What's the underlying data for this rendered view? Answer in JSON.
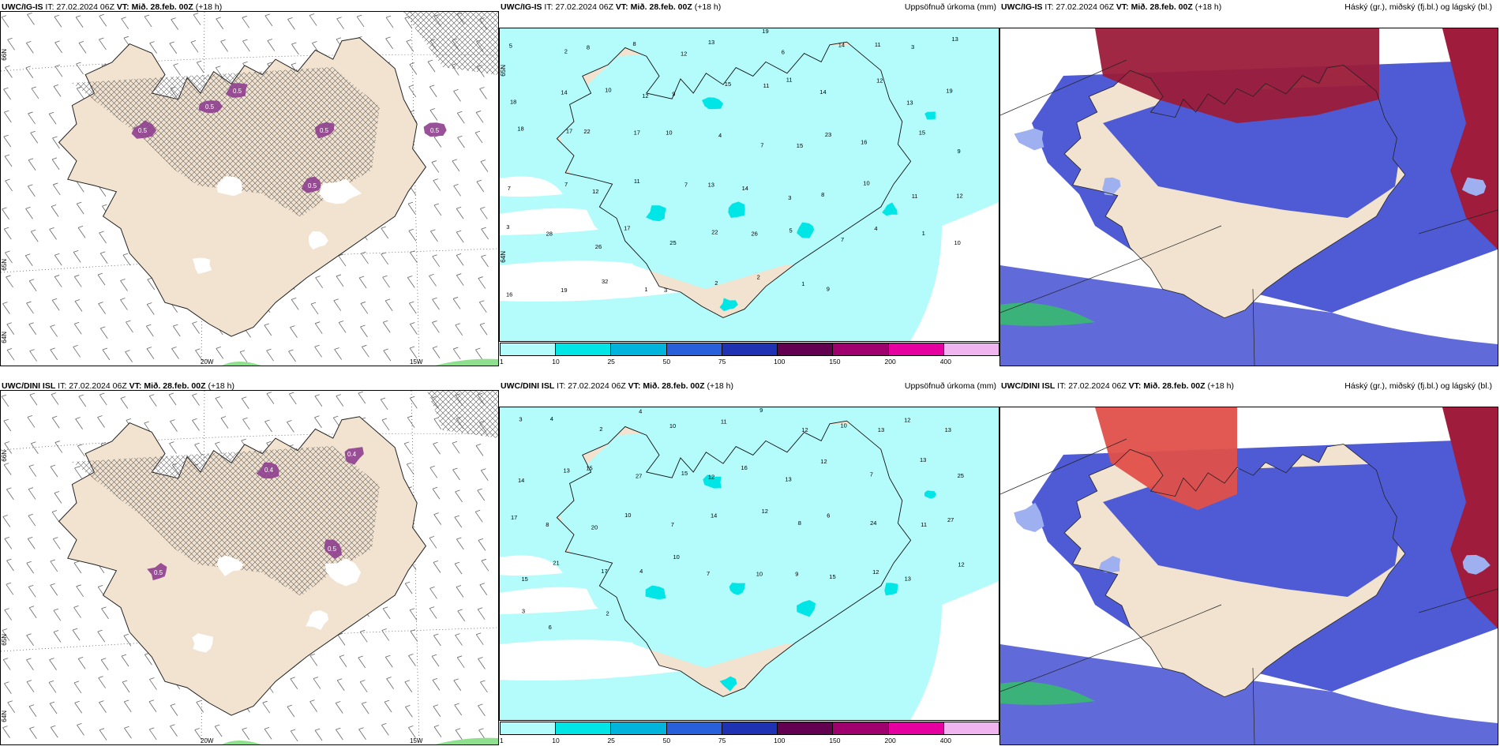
{
  "run": {
    "init_label": "IT:",
    "init_time": "27.02.2024 06Z",
    "valid_label": "VT:",
    "valid_time": "Mið. 28.feb. 00Z",
    "lead": "(+18 h)"
  },
  "rows": [
    {
      "model": "UWC/IG-IS"
    },
    {
      "model": "UWC/DINI ISL"
    }
  ],
  "panel_titles": {
    "accum": "Uppsöfnuð úrkoma (mm)",
    "cloud": "Háský (gr.), miðský (fj.bl.) og lágský (bl.)"
  },
  "axis_labels": {
    "lat66": "66N",
    "lat65": "65N",
    "lat64": "64N",
    "lon20": "20W",
    "lon15": "15W"
  },
  "colorbar": {
    "ticks": [
      "1",
      "10",
      "25",
      "50",
      "75",
      "100",
      "150",
      "200",
      "400"
    ],
    "colors": [
      "#b4fbfb",
      "#00e6e6",
      "#00b4dc",
      "#2860dc",
      "#2032b4",
      "#640050",
      "#a0006e",
      "#e600a0",
      "#f0b4f0"
    ]
  },
  "land_color": "#f2e2d0",
  "sea_precip_color": "#b4fbfb",
  "precip_values_top": [
    "5",
    "2",
    "8",
    "8",
    "12",
    "13",
    "19",
    "6",
    "14",
    "11",
    "3",
    "13",
    "18",
    "14",
    "10",
    "12",
    "9",
    "15",
    "11",
    "11",
    "14",
    "12",
    "13",
    "19",
    "18",
    "17",
    "22",
    "17",
    "10",
    "4",
    "7",
    "15",
    "23",
    "16",
    "15",
    "9",
    "7",
    "7",
    "12",
    "11",
    "7",
    "13",
    "14",
    "3",
    "8",
    "10",
    "11",
    "12",
    "3",
    "28",
    "26",
    "17",
    "25",
    "22",
    "26",
    "5",
    "7",
    "4",
    "1",
    "10",
    "16",
    "19",
    "32",
    "1",
    "3",
    "2",
    "2",
    "1",
    "9"
  ],
  "precip_values_bottom": [
    "3",
    "4",
    "2",
    "4",
    "10",
    "11",
    "9",
    "12",
    "10",
    "13",
    "12",
    "13",
    "14",
    "13",
    "15",
    "27",
    "15",
    "12",
    "16",
    "13",
    "12",
    "7",
    "13",
    "25",
    "17",
    "8",
    "20",
    "10",
    "7",
    "14",
    "12",
    "8",
    "6",
    "24",
    "11",
    "27",
    "15",
    "21",
    "17",
    "4",
    "10",
    "7",
    "10",
    "9",
    "15",
    "12",
    "13",
    "12",
    "3",
    "6",
    "2"
  ],
  "snow_labels_top": [
    "0.5",
    "0.5",
    "0.5",
    "0.5",
    "0.5",
    "0.5"
  ],
  "snow_labels_bottom": [
    "0.4",
    "0.5",
    "0.4",
    "0.5"
  ]
}
